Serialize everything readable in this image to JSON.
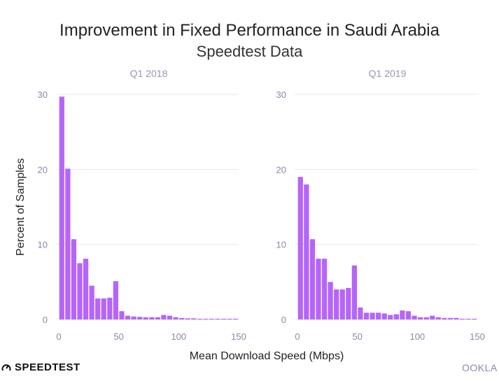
{
  "title": "Improvement in Fixed Performance in Saudi Arabia",
  "subtitle": "Speedtest Data",
  "brand_left": "SPEEDTEST",
  "brand_right": "OOKLA",
  "colors": {
    "bar": "#b565f8",
    "grid": "#e8e8e8",
    "panel_title": "#9b95b3",
    "tick": "#8c86a8"
  },
  "chart_data": [
    {
      "type": "bar",
      "panel_title": "Q1  2018",
      "xlabel": "Mean Download Speed (Mbps)",
      "ylabel": "Percent of Samples",
      "bin_width": 5,
      "bin_starts": [
        0,
        5,
        10,
        15,
        20,
        25,
        30,
        35,
        40,
        45,
        50,
        55,
        60,
        65,
        70,
        75,
        80,
        85,
        90,
        95,
        100,
        105,
        110,
        115,
        120,
        125,
        130,
        135,
        140,
        145
      ],
      "values": [
        29.7,
        20.1,
        10.7,
        7.5,
        8.1,
        4.5,
        2.8,
        2.8,
        2.9,
        5.1,
        1.1,
        0.5,
        0.4,
        0.35,
        0.3,
        0.3,
        0.3,
        0.6,
        0.5,
        0.3,
        0.2,
        0.15,
        0.15,
        0.1,
        0.1,
        0.1,
        0.1,
        0.1,
        0.1,
        0.1
      ],
      "xlim": [
        0,
        150
      ],
      "ylim": [
        0,
        30
      ],
      "x_ticks": [
        0,
        50,
        100,
        150
      ],
      "y_ticks": [
        0,
        10,
        20,
        30
      ]
    },
    {
      "type": "bar",
      "panel_title": "Q1  2019",
      "xlabel": "Mean Download Speed (Mbps)",
      "ylabel": "Percent of Samples",
      "bin_width": 5,
      "bin_starts": [
        0,
        5,
        10,
        15,
        20,
        25,
        30,
        35,
        40,
        45,
        50,
        55,
        60,
        65,
        70,
        75,
        80,
        85,
        90,
        95,
        100,
        105,
        110,
        115,
        120,
        125,
        130,
        135,
        140,
        145
      ],
      "values": [
        19.0,
        18.0,
        10.7,
        8.1,
        8.1,
        5.0,
        4.0,
        4.0,
        4.2,
        7.2,
        1.6,
        0.9,
        0.9,
        0.9,
        0.8,
        0.6,
        0.7,
        1.2,
        1.1,
        0.5,
        0.3,
        0.3,
        0.5,
        0.3,
        0.2,
        0.2,
        0.2,
        0.1,
        0.1,
        0.1
      ],
      "xlim": [
        0,
        150
      ],
      "ylim": [
        0,
        30
      ],
      "x_ticks": [
        0,
        50,
        100,
        150
      ],
      "y_ticks": [
        0,
        10,
        20,
        30
      ]
    }
  ]
}
